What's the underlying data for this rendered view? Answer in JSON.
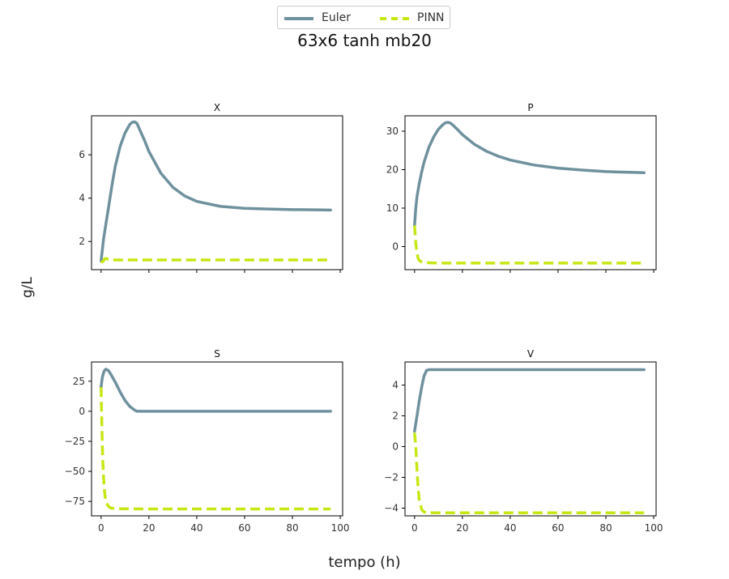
{
  "figure": {
    "suptitle": "63x6 tanh mb20",
    "xlabel": "tempo (h)",
    "ylabel": "g/L"
  },
  "legend": {
    "position": "top-center",
    "items": [
      {
        "label": "Euler",
        "color": "#6f919e",
        "style": "solid"
      },
      {
        "label": "PINN",
        "color": "#c8e614",
        "style": "dashed"
      }
    ]
  },
  "chart_data": [
    {
      "type": "line",
      "title": "X",
      "xlim": [
        -4,
        101
      ],
      "ylim": [
        0.7,
        7.8
      ],
      "xticks": [
        0,
        20,
        40,
        60,
        80,
        100
      ],
      "yticks": [
        2,
        4,
        6
      ],
      "show_xtick_labels": false,
      "grid": false,
      "series": [
        {
          "name": "Euler",
          "x": [
            0,
            1,
            2,
            3,
            4,
            5,
            6,
            8,
            10,
            12,
            13,
            14,
            15,
            16,
            18,
            20,
            25,
            30,
            35,
            40,
            50,
            60,
            70,
            80,
            90,
            96
          ],
          "values": [
            1.1,
            2.1,
            2.8,
            3.5,
            4.2,
            4.9,
            5.5,
            6.4,
            7.0,
            7.4,
            7.5,
            7.52,
            7.45,
            7.2,
            6.7,
            6.15,
            5.15,
            4.5,
            4.1,
            3.85,
            3.62,
            3.53,
            3.5,
            3.47,
            3.46,
            3.45
          ]
        },
        {
          "name": "PINN",
          "x": [
            0,
            0.5,
            1,
            1.5,
            2,
            3,
            5,
            10,
            20,
            40,
            60,
            80,
            96
          ],
          "values": [
            1.1,
            1.05,
            1.1,
            1.2,
            1.22,
            1.18,
            1.15,
            1.15,
            1.15,
            1.15,
            1.15,
            1.15,
            1.15
          ]
        }
      ]
    },
    {
      "type": "line",
      "title": "P",
      "xlim": [
        -4,
        101
      ],
      "ylim": [
        -6,
        34
      ],
      "xticks": [
        0,
        20,
        40,
        60,
        80,
        100
      ],
      "yticks": [
        0,
        10,
        20,
        30
      ],
      "show_xtick_labels": false,
      "grid": false,
      "series": [
        {
          "name": "Euler",
          "x": [
            0,
            0.5,
            1,
            2,
            3,
            4,
            6,
            8,
            10,
            12,
            13,
            14,
            15,
            16,
            18,
            20,
            25,
            30,
            35,
            40,
            50,
            60,
            70,
            80,
            90,
            96
          ],
          "values": [
            5.5,
            10,
            13,
            16.5,
            19.5,
            22,
            25.8,
            28.5,
            30.5,
            31.8,
            32.2,
            32.3,
            32.1,
            31.6,
            30.4,
            29.1,
            26.6,
            24.8,
            23.5,
            22.5,
            21.2,
            20.4,
            19.9,
            19.5,
            19.3,
            19.2
          ]
        },
        {
          "name": "PINN",
          "x": [
            0,
            0.5,
            1,
            1.5,
            2,
            3,
            5,
            10,
            20,
            40,
            60,
            80,
            96
          ],
          "values": [
            5.5,
            1,
            -1.8,
            -3.0,
            -3.6,
            -4.0,
            -4.2,
            -4.3,
            -4.3,
            -4.3,
            -4.3,
            -4.3,
            -4.3
          ]
        }
      ]
    },
    {
      "type": "line",
      "title": "S",
      "xlim": [
        -4,
        101
      ],
      "ylim": [
        -87,
        41
      ],
      "xticks": [
        0,
        20,
        40,
        60,
        80,
        100
      ],
      "yticks": [
        -75,
        -50,
        -25,
        0,
        25
      ],
      "show_xtick_labels": true,
      "grid": false,
      "series": [
        {
          "name": "Euler",
          "x": [
            0,
            0.5,
            1,
            1.5,
            2,
            3,
            4,
            6,
            8,
            10,
            12,
            14,
            15,
            16,
            20,
            40,
            60,
            80,
            96
          ],
          "values": [
            20,
            28,
            32,
            34,
            35,
            34,
            31,
            24,
            16,
            9,
            4,
            1,
            0,
            0,
            0,
            0,
            0,
            0,
            0
          ]
        },
        {
          "name": "PINN",
          "x": [
            0,
            0.3,
            0.6,
            1,
            1.5,
            2,
            3,
            4,
            6,
            10,
            20,
            40,
            60,
            80,
            96
          ],
          "values": [
            20,
            -10,
            -35,
            -55,
            -68,
            -75,
            -79,
            -80.5,
            -81,
            -81.2,
            -81.3,
            -81.3,
            -81.3,
            -81.3,
            -81.3
          ]
        }
      ]
    },
    {
      "type": "line",
      "title": "V",
      "xlim": [
        -4,
        101
      ],
      "ylim": [
        -4.5,
        5.5
      ],
      "xticks": [
        0,
        20,
        40,
        60,
        80,
        100
      ],
      "yticks": [
        -4,
        -2,
        0,
        2,
        4
      ],
      "show_xtick_labels": true,
      "grid": false,
      "series": [
        {
          "name": "Euler",
          "x": [
            0,
            1,
            2,
            3,
            4,
            5,
            6,
            10,
            20,
            40,
            60,
            80,
            96
          ],
          "values": [
            1.0,
            2.0,
            3.0,
            3.9,
            4.6,
            4.95,
            5.0,
            5.0,
            5.0,
            5.0,
            5.0,
            5.0,
            5.0
          ]
        },
        {
          "name": "PINN",
          "x": [
            0,
            0.5,
            1,
            1.5,
            2,
            3,
            4,
            5,
            10,
            20,
            40,
            60,
            80,
            96
          ],
          "values": [
            0.9,
            0,
            -1.5,
            -2.7,
            -3.5,
            -4.1,
            -4.25,
            -4.3,
            -4.3,
            -4.3,
            -4.3,
            -4.3,
            -4.3,
            -4.3
          ]
        }
      ]
    }
  ]
}
